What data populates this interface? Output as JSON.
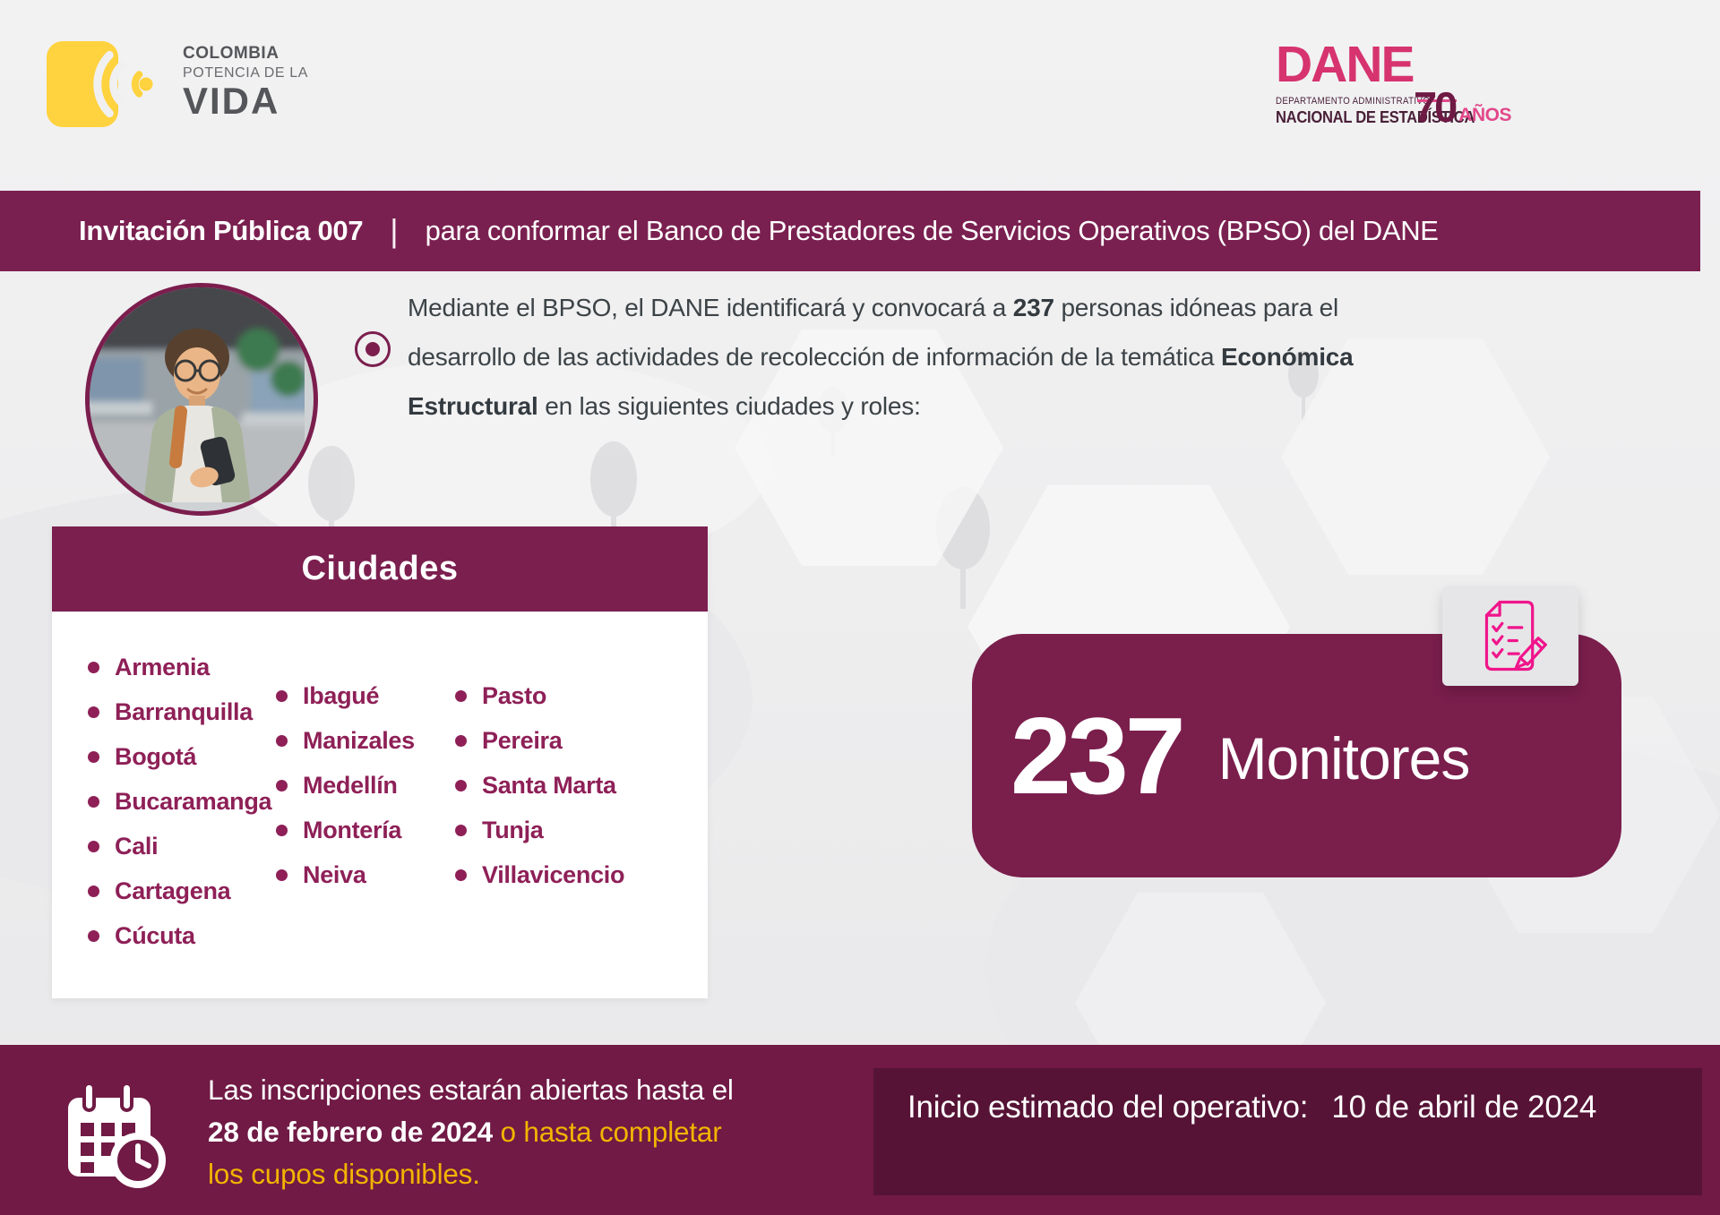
{
  "colors": {
    "primary_maroon": "#7A2050",
    "card_maroon": "#7B1F4F",
    "footer_maroon": "#701A45",
    "deep_maroon": "#561336",
    "city_text": "#8E2057",
    "accent_yellow": "#F2B400",
    "logo_yellow": "#FFD23F",
    "dane_pink": "#D6336F",
    "icon_pink": "#F0158B"
  },
  "header": {
    "colombia_logo": {
      "icon": "colombia-radial-icon",
      "line1": "COLOMBIA",
      "line2": "POTENCIA DE LA",
      "line3": "VIDA"
    },
    "dane_logo": {
      "wordmark": "DANE",
      "sub_line1": "DEPARTAMENTO ADMINISTRATIVO",
      "sub_line2": "NACIONAL DE ESTADÍSTICA",
      "anniversary_number": "70",
      "anniversary_word": "AÑOS"
    }
  },
  "banner": {
    "lead": "Invitación Pública 007",
    "divider": "|",
    "rest": "para conformar el Banco de Prestadores de Servicios Operativos (BPSO) del DANE"
  },
  "intro": {
    "bullet_icon": "target-bullet-icon",
    "text_1": "Mediante el BPSO, el DANE identificará y convocará a ",
    "bold_1": "237",
    "text_2": " personas idóneas para el desarrollo de las actividades de recolección de información de la temática ",
    "bold_2": "Económica Estructural",
    "text_3": " en las siguientes ciudades y roles:"
  },
  "cities": {
    "title": "Ciudades",
    "column_1": [
      "Armenia",
      "Barranquilla",
      "Bogotá",
      "Bucaramanga",
      "Cali",
      "Cartagena",
      "Cúcuta"
    ],
    "column_2": [
      "Ibagué",
      "Manizales",
      "Medellín",
      "Montería",
      "Neiva"
    ],
    "column_3": [
      "Pasto",
      "Pereira",
      "Santa Marta",
      "Tunja",
      "Villavicencio"
    ]
  },
  "monitors": {
    "icon": "checklist-pencil-icon",
    "count": "237",
    "role": "Monitores"
  },
  "footer": {
    "registration": {
      "icon": "calendar-clock-icon",
      "line_1": "Las inscripciones estarán abiertas hasta el",
      "date_bold": "28 de febrero de 2024",
      "highlight_after_date": " o hasta completar",
      "highlight_line_3": "los cupos disponibles."
    },
    "start": {
      "label": "Inicio estimado del operativo:",
      "value": "10 de abril de 2024"
    }
  }
}
